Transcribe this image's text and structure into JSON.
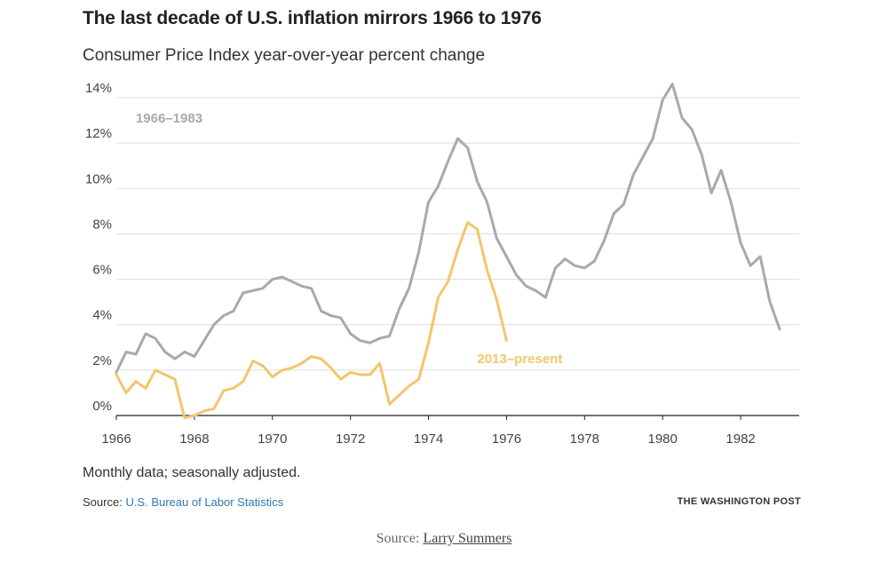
{
  "title": "The last decade of U.S. inflation mirrors 1966 to 1976",
  "subtitle": "Consumer Price Index year-over-year percent change",
  "note": "Monthly data; seasonally adjusted.",
  "source": {
    "prefix": "Source:",
    "link_text": "U.S. Bureau of Labor Statistics"
  },
  "brand": "THE WASHINGTON POST",
  "caption": {
    "prefix": "Source:",
    "link_text": "Larry Summers"
  },
  "colors": {
    "series_1966": "#a9a9a9",
    "series_2013": "#f2c66b",
    "grid": "#dddddd",
    "axis": "#222222"
  },
  "chart_data": {
    "type": "line",
    "title": "The last decade of U.S. inflation mirrors 1966 to 1976",
    "subtitle": "Consumer Price Index year-over-year percent change",
    "xlabel": "",
    "ylabel": "",
    "xlim": [
      1966,
      1983.5
    ],
    "ylim": [
      0,
      14
    ],
    "yticks": [
      0,
      2,
      4,
      6,
      8,
      10,
      12,
      14
    ],
    "ytick_labels": [
      "0%",
      "2%",
      "4%",
      "6%",
      "8%",
      "10%",
      "12%",
      "14%"
    ],
    "xticks": [
      1966,
      1968,
      1970,
      1972,
      1974,
      1976,
      1978,
      1980,
      1982
    ],
    "xtick_labels": [
      "1966",
      "1968",
      "1970",
      "1972",
      "1974",
      "1976",
      "1978",
      "1980",
      "1982"
    ],
    "grid": true,
    "series": [
      {
        "name": "1966–1983",
        "label_at": [
          1966.5,
          12.9
        ],
        "x": [
          1966.0,
          1966.25,
          1966.5,
          1966.75,
          1967.0,
          1967.25,
          1967.5,
          1967.75,
          1968.0,
          1968.25,
          1968.5,
          1968.75,
          1969.0,
          1969.25,
          1969.5,
          1969.75,
          1970.0,
          1970.25,
          1970.5,
          1970.75,
          1971.0,
          1971.25,
          1971.5,
          1971.75,
          1972.0,
          1972.25,
          1972.5,
          1972.75,
          1973.0,
          1973.25,
          1973.5,
          1973.75,
          1974.0,
          1974.25,
          1974.5,
          1974.75,
          1975.0,
          1975.25,
          1975.5,
          1975.75,
          1976.0,
          1976.25,
          1976.5,
          1976.75,
          1977.0,
          1977.25,
          1977.5,
          1977.75,
          1978.0,
          1978.25,
          1978.5,
          1978.75,
          1979.0,
          1979.25,
          1979.5,
          1979.75,
          1980.0,
          1980.25,
          1980.5,
          1980.75,
          1981.0,
          1981.25,
          1981.5,
          1981.75,
          1982.0,
          1982.25,
          1982.5,
          1982.75,
          1983.0
        ],
        "values": [
          1.9,
          2.8,
          2.7,
          3.6,
          3.4,
          2.8,
          2.5,
          2.8,
          2.6,
          3.3,
          4.0,
          4.4,
          4.6,
          5.4,
          5.5,
          5.6,
          6.0,
          6.1,
          5.9,
          5.7,
          5.6,
          4.6,
          4.4,
          4.3,
          3.6,
          3.3,
          3.2,
          3.4,
          3.5,
          4.7,
          5.6,
          7.2,
          9.4,
          10.1,
          11.2,
          12.2,
          11.8,
          10.3,
          9.4,
          7.8,
          7.0,
          6.2,
          5.7,
          5.5,
          5.2,
          6.5,
          6.9,
          6.6,
          6.5,
          6.8,
          7.7,
          8.9,
          9.3,
          10.6,
          11.4,
          12.2,
          13.9,
          14.6,
          13.1,
          12.6,
          11.5,
          9.8,
          10.8,
          9.4,
          7.6,
          6.6,
          7.0,
          5.0,
          3.8
        ]
      },
      {
        "name": "2013–present",
        "label_at": [
          1975.25,
          2.3
        ],
        "x": [
          1966.0,
          1966.25,
          1966.5,
          1966.75,
          1967.0,
          1967.25,
          1967.5,
          1967.75,
          1968.0,
          1968.25,
          1968.5,
          1968.75,
          1969.0,
          1969.25,
          1969.5,
          1969.75,
          1970.0,
          1970.25,
          1970.5,
          1970.75,
          1971.0,
          1971.25,
          1971.5,
          1971.75,
          1972.0,
          1972.25,
          1972.5,
          1972.75,
          1973.0,
          1973.25,
          1973.5,
          1973.75,
          1974.0,
          1974.25,
          1974.5,
          1974.75,
          1975.0,
          1975.25,
          1975.5,
          1975.75,
          1976.0
        ],
        "values": [
          1.8,
          1.0,
          1.5,
          1.2,
          2.0,
          1.8,
          1.6,
          -0.1,
          0.0,
          0.2,
          0.3,
          1.1,
          1.2,
          1.5,
          2.4,
          2.2,
          1.7,
          2.0,
          2.1,
          2.3,
          2.6,
          2.5,
          2.1,
          1.6,
          1.9,
          1.8,
          1.8,
          2.3,
          0.5,
          0.9,
          1.3,
          1.6,
          3.2,
          5.2,
          5.9,
          7.3,
          8.5,
          8.2,
          6.4,
          5.1,
          3.3
        ]
      }
    ]
  }
}
